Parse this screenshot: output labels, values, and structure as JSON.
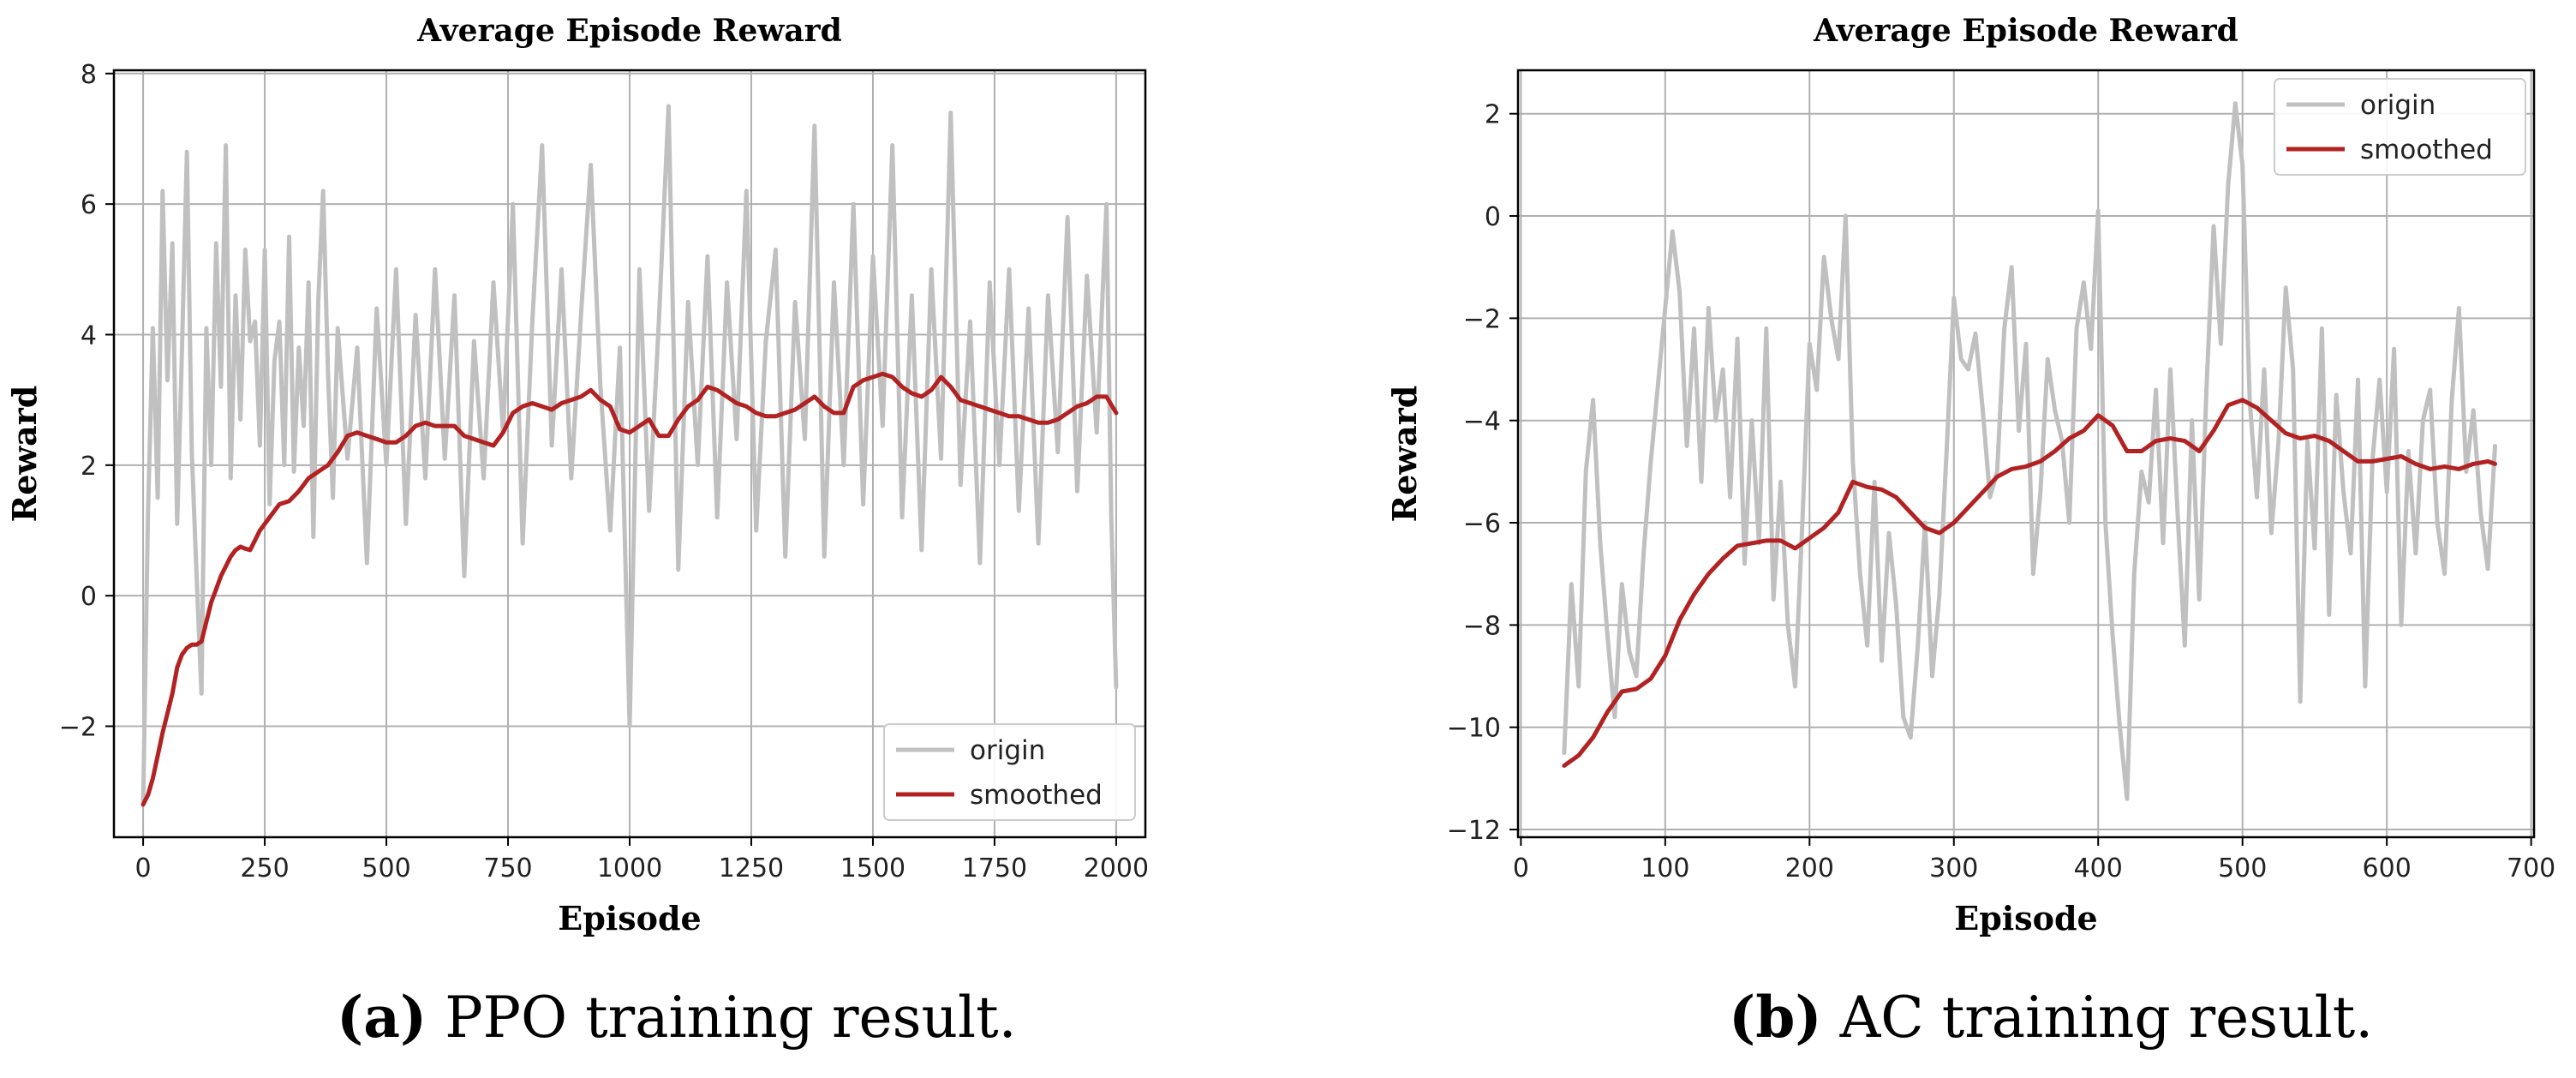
{
  "colors": {
    "origin": "#c0c0c0",
    "smoothed": "#b22222",
    "grid": "#b0b0b0",
    "axis": "#000000"
  },
  "chart_data": [
    {
      "type": "line",
      "title": "Average Episode Reward",
      "xlabel": "Episode",
      "ylabel": "Reward",
      "xlim": [
        -60,
        2060
      ],
      "ylim": [
        -3.7,
        8.05
      ],
      "xticks": [
        0,
        250,
        500,
        750,
        1000,
        1250,
        1500,
        1750,
        2000
      ],
      "yticks": [
        -2,
        0,
        2,
        4,
        6,
        8
      ],
      "grid": true,
      "legend_position": "lower-right",
      "series": [
        {
          "name": "origin",
          "note": "raw noisy per-episode reward, envelope approximated",
          "x": [
            0,
            10,
            20,
            30,
            40,
            50,
            60,
            70,
            80,
            90,
            100,
            110,
            120,
            130,
            140,
            150,
            160,
            170,
            180,
            190,
            200,
            210,
            220,
            230,
            240,
            250,
            260,
            270,
            280,
            290,
            300,
            310,
            320,
            330,
            340,
            350,
            360,
            370,
            380,
            390,
            400,
            420,
            440,
            460,
            480,
            500,
            520,
            540,
            560,
            580,
            600,
            620,
            640,
            660,
            680,
            700,
            720,
            740,
            760,
            780,
            800,
            820,
            840,
            860,
            880,
            900,
            920,
            940,
            960,
            980,
            1000,
            1020,
            1040,
            1060,
            1080,
            1100,
            1120,
            1140,
            1160,
            1180,
            1200,
            1220,
            1240,
            1260,
            1280,
            1300,
            1320,
            1340,
            1360,
            1380,
            1400,
            1420,
            1440,
            1460,
            1480,
            1500,
            1520,
            1540,
            1560,
            1580,
            1600,
            1620,
            1640,
            1660,
            1680,
            1700,
            1720,
            1740,
            1760,
            1780,
            1800,
            1820,
            1840,
            1860,
            1880,
            1900,
            1920,
            1940,
            1960,
            1980,
            1990,
            2000
          ],
          "values": [
            -3.2,
            1.3,
            4.1,
            1.5,
            6.2,
            3.3,
            5.4,
            1.1,
            3.8,
            6.8,
            2.2,
            0.3,
            -1.5,
            4.1,
            2.0,
            5.4,
            3.2,
            6.9,
            1.8,
            4.6,
            2.7,
            5.3,
            3.9,
            4.2,
            2.3,
            5.3,
            1.4,
            3.6,
            4.2,
            2.0,
            5.5,
            1.9,
            3.8,
            2.6,
            4.8,
            0.9,
            4.5,
            6.2,
            3.4,
            1.5,
            4.1,
            2.1,
            3.8,
            0.5,
            4.4,
            2.0,
            5.0,
            1.1,
            4.3,
            1.8,
            5.0,
            2.1,
            4.6,
            0.3,
            3.9,
            1.8,
            4.8,
            2.5,
            6.0,
            0.8,
            4.2,
            6.9,
            2.3,
            5.0,
            1.8,
            4.3,
            6.6,
            3.2,
            1.0,
            3.8,
            -2.0,
            5.0,
            1.3,
            4.2,
            7.5,
            0.4,
            4.5,
            2.0,
            5.2,
            1.2,
            4.8,
            2.4,
            6.2,
            1.0,
            3.9,
            5.3,
            0.6,
            4.5,
            2.4,
            7.2,
            0.6,
            4.8,
            2.0,
            6.0,
            1.4,
            5.2,
            2.6,
            6.9,
            1.2,
            4.6,
            0.7,
            5.0,
            2.1,
            7.4,
            1.7,
            4.2,
            0.5,
            4.8,
            2.0,
            5.0,
            1.3,
            4.4,
            0.8,
            4.6,
            2.2,
            5.8,
            1.6,
            4.9,
            2.5,
            6.0,
            1.2,
            -1.4
          ]
        },
        {
          "name": "smoothed",
          "x": [
            0,
            10,
            20,
            30,
            40,
            50,
            60,
            70,
            80,
            90,
            100,
            110,
            120,
            130,
            140,
            150,
            160,
            170,
            180,
            190,
            200,
            210,
            220,
            240,
            260,
            280,
            300,
            320,
            340,
            360,
            380,
            400,
            420,
            440,
            460,
            480,
            500,
            520,
            540,
            560,
            580,
            600,
            620,
            640,
            660,
            680,
            700,
            720,
            740,
            760,
            780,
            800,
            820,
            840,
            860,
            880,
            900,
            920,
            940,
            960,
            980,
            1000,
            1020,
            1040,
            1060,
            1080,
            1100,
            1120,
            1140,
            1160,
            1180,
            1200,
            1220,
            1240,
            1260,
            1280,
            1300,
            1320,
            1340,
            1360,
            1380,
            1400,
            1420,
            1440,
            1460,
            1480,
            1500,
            1520,
            1540,
            1560,
            1580,
            1600,
            1620,
            1640,
            1660,
            1680,
            1700,
            1720,
            1740,
            1760,
            1780,
            1800,
            1820,
            1840,
            1860,
            1880,
            1900,
            1920,
            1940,
            1960,
            1980,
            2000
          ],
          "values": [
            -3.2,
            -3.05,
            -2.8,
            -2.45,
            -2.1,
            -1.8,
            -1.5,
            -1.1,
            -0.9,
            -0.8,
            -0.75,
            -0.75,
            -0.7,
            -0.4,
            -0.1,
            0.1,
            0.3,
            0.45,
            0.6,
            0.7,
            0.75,
            0.72,
            0.7,
            1.0,
            1.2,
            1.4,
            1.45,
            1.6,
            1.8,
            1.9,
            2.0,
            2.2,
            2.45,
            2.5,
            2.45,
            2.4,
            2.35,
            2.35,
            2.45,
            2.6,
            2.65,
            2.6,
            2.6,
            2.6,
            2.45,
            2.4,
            2.35,
            2.3,
            2.5,
            2.8,
            2.9,
            2.95,
            2.9,
            2.85,
            2.95,
            3.0,
            3.05,
            3.15,
            3.0,
            2.9,
            2.55,
            2.5,
            2.6,
            2.7,
            2.45,
            2.45,
            2.7,
            2.9,
            3.0,
            3.2,
            3.15,
            3.05,
            2.95,
            2.9,
            2.8,
            2.75,
            2.75,
            2.8,
            2.85,
            2.95,
            3.05,
            2.9,
            2.8,
            2.8,
            3.2,
            3.3,
            3.35,
            3.4,
            3.35,
            3.2,
            3.1,
            3.05,
            3.15,
            3.35,
            3.2,
            3.0,
            2.95,
            2.9,
            2.85,
            2.8,
            2.75,
            2.75,
            2.7,
            2.65,
            2.65,
            2.7,
            2.8,
            2.9,
            2.95,
            3.05,
            3.05,
            2.8
          ]
        }
      ]
    },
    {
      "type": "line",
      "title": "Average Episode Reward",
      "xlabel": "Episode",
      "ylabel": "Reward",
      "xlim": [
        -2,
        702
      ],
      "ylim": [
        -12.15,
        2.85
      ],
      "xticks": [
        0,
        100,
        200,
        300,
        400,
        500,
        600,
        700
      ],
      "yticks": [
        -12,
        -10,
        -8,
        -6,
        -4,
        -2,
        0,
        2
      ],
      "grid": true,
      "legend_position": "top-right",
      "series": [
        {
          "name": "origin",
          "note": "raw noisy per-episode reward, envelope approximated",
          "x": [
            30,
            35,
            40,
            45,
            50,
            55,
            60,
            65,
            70,
            75,
            80,
            85,
            90,
            95,
            100,
            105,
            110,
            115,
            120,
            125,
            130,
            135,
            140,
            145,
            150,
            155,
            160,
            165,
            170,
            175,
            180,
            185,
            190,
            195,
            200,
            205,
            210,
            215,
            220,
            225,
            230,
            235,
            240,
            245,
            250,
            255,
            260,
            265,
            270,
            275,
            280,
            285,
            290,
            295,
            300,
            305,
            310,
            315,
            320,
            325,
            330,
            335,
            340,
            345,
            350,
            355,
            360,
            365,
            370,
            375,
            380,
            385,
            390,
            395,
            400,
            405,
            410,
            415,
            420,
            425,
            430,
            435,
            440,
            445,
            450,
            455,
            460,
            465,
            470,
            475,
            480,
            485,
            490,
            495,
            500,
            505,
            510,
            515,
            520,
            525,
            530,
            535,
            540,
            545,
            550,
            555,
            560,
            565,
            570,
            575,
            580,
            585,
            590,
            595,
            600,
            605,
            610,
            615,
            620,
            625,
            630,
            635,
            640,
            645,
            650,
            655,
            660,
            665,
            670,
            675
          ],
          "values": [
            -10.5,
            -7.2,
            -9.2,
            -5.0,
            -3.6,
            -6.4,
            -8.2,
            -9.8,
            -7.2,
            -8.5,
            -9.0,
            -6.6,
            -4.8,
            -3.3,
            -1.8,
            -0.3,
            -1.5,
            -4.5,
            -2.2,
            -5.2,
            -1.8,
            -4.0,
            -3.0,
            -5.5,
            -2.4,
            -6.8,
            -4.0,
            -6.4,
            -2.2,
            -7.5,
            -5.2,
            -8.0,
            -9.2,
            -6.0,
            -2.5,
            -3.4,
            -0.8,
            -2.0,
            -2.8,
            0.0,
            -4.8,
            -7.0,
            -8.4,
            -5.2,
            -8.7,
            -6.2,
            -7.6,
            -9.8,
            -10.2,
            -8.4,
            -6.0,
            -9.0,
            -7.4,
            -4.6,
            -1.6,
            -2.8,
            -3.0,
            -2.3,
            -3.8,
            -5.5,
            -5.0,
            -2.2,
            -1.0,
            -4.2,
            -2.5,
            -7.0,
            -5.4,
            -2.8,
            -3.8,
            -4.4,
            -6.0,
            -2.2,
            -1.3,
            -2.6,
            0.1,
            -6.0,
            -8.2,
            -10.0,
            -11.4,
            -7.0,
            -5.0,
            -5.6,
            -3.4,
            -6.4,
            -3.0,
            -5.8,
            -8.4,
            -4.0,
            -7.5,
            -3.4,
            -0.2,
            -2.5,
            0.6,
            2.2,
            1.0,
            -3.6,
            -5.5,
            -3.0,
            -6.2,
            -4.4,
            -1.4,
            -3.0,
            -9.5,
            -4.4,
            -6.5,
            -2.2,
            -7.8,
            -3.5,
            -5.4,
            -6.6,
            -3.2,
            -9.2,
            -4.8,
            -3.2,
            -5.4,
            -2.6,
            -8.0,
            -4.6,
            -6.6,
            -4.0,
            -3.4,
            -6.0,
            -7.0,
            -3.6,
            -1.8,
            -5.0,
            -3.8,
            -5.8,
            -6.9,
            -4.5
          ]
        },
        {
          "name": "smoothed",
          "x": [
            30,
            40,
            50,
            60,
            70,
            80,
            90,
            100,
            110,
            120,
            130,
            140,
            150,
            160,
            170,
            180,
            190,
            200,
            210,
            220,
            230,
            240,
            250,
            260,
            270,
            280,
            290,
            300,
            310,
            320,
            330,
            340,
            350,
            360,
            370,
            380,
            390,
            400,
            410,
            420,
            430,
            440,
            450,
            460,
            470,
            480,
            490,
            500,
            510,
            520,
            530,
            540,
            550,
            560,
            570,
            580,
            590,
            600,
            610,
            620,
            630,
            640,
            650,
            660,
            670,
            675
          ],
          "values": [
            -10.75,
            -10.55,
            -10.2,
            -9.7,
            -9.3,
            -9.25,
            -9.05,
            -8.6,
            -7.9,
            -7.4,
            -7.0,
            -6.7,
            -6.45,
            -6.4,
            -6.35,
            -6.35,
            -6.5,
            -6.3,
            -6.1,
            -5.8,
            -5.2,
            -5.3,
            -5.35,
            -5.5,
            -5.8,
            -6.1,
            -6.2,
            -6.0,
            -5.7,
            -5.4,
            -5.1,
            -4.95,
            -4.9,
            -4.8,
            -4.6,
            -4.35,
            -4.2,
            -3.9,
            -4.1,
            -4.6,
            -4.6,
            -4.4,
            -4.35,
            -4.4,
            -4.6,
            -4.2,
            -3.7,
            -3.6,
            -3.75,
            -4.0,
            -4.25,
            -4.35,
            -4.3,
            -4.4,
            -4.6,
            -4.8,
            -4.8,
            -4.75,
            -4.7,
            -4.85,
            -4.95,
            -4.9,
            -4.95,
            -4.85,
            -4.8,
            -4.85
          ]
        }
      ]
    }
  ],
  "captions": [
    {
      "tag": "(a)",
      "text": " PPO training result."
    },
    {
      "tag": "(b)",
      "text": " AC training result."
    }
  ]
}
